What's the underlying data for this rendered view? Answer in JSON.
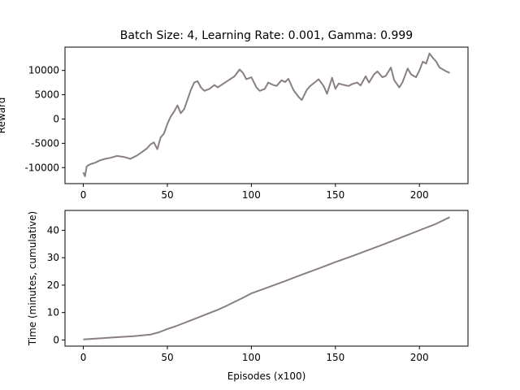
{
  "chart_data": [
    {
      "type": "line",
      "title": "Batch Size: 4, Learning Rate: 0.001, Gamma: 0.999",
      "xlabel": "",
      "ylabel": "Reward",
      "xlim": [
        -10.9,
        228.9
      ],
      "ylim": [
        -13300,
        14800
      ],
      "xticks": [
        0,
        50,
        100,
        150,
        200
      ],
      "yticks": [
        -10000,
        -5000,
        0,
        5000,
        10000
      ],
      "grid": false,
      "color": "#8a7f80",
      "series": [
        {
          "x": [
            0,
            1,
            2,
            3,
            5,
            7,
            10,
            13,
            16,
            20,
            24,
            28,
            32,
            35,
            38,
            40,
            42,
            44,
            46,
            48,
            50,
            52,
            54,
            56,
            58,
            60,
            62,
            64,
            66,
            68,
            70,
            72,
            75,
            78,
            80,
            83,
            86,
            90,
            93,
            95,
            97,
            100,
            103,
            105,
            108,
            110,
            113,
            115,
            118,
            120,
            122,
            125,
            128,
            130,
            133,
            135,
            138,
            140,
            143,
            145,
            148,
            150,
            152,
            155,
            158,
            160,
            163,
            165,
            168,
            170,
            173,
            175,
            178,
            180,
            183,
            185,
            188,
            190,
            193,
            195,
            198,
            200,
            202,
            204,
            206,
            208,
            210,
            212,
            214,
            216,
            218
          ],
          "values": [
            -11000,
            -11800,
            -9800,
            -9500,
            -9200,
            -9000,
            -8500,
            -8200,
            -8000,
            -7600,
            -7800,
            -8200,
            -7500,
            -6800,
            -6000,
            -5200,
            -4800,
            -6200,
            -3800,
            -3000,
            -1000,
            500,
            1500,
            2800,
            1200,
            2000,
            4000,
            6000,
            7500,
            7800,
            6500,
            5800,
            6200,
            7000,
            6500,
            7200,
            7900,
            8800,
            10200,
            9500,
            8200,
            8600,
            6500,
            5800,
            6200,
            7500,
            7000,
            6800,
            8000,
            7600,
            8300,
            6000,
            4600,
            3900,
            6000,
            6800,
            7600,
            8200,
            6800,
            5200,
            8500,
            6200,
            7300,
            7000,
            6800,
            7200,
            7500,
            6900,
            8800,
            7500,
            9200,
            9800,
            8600,
            8900,
            10600,
            8000,
            6500,
            7600,
            10400,
            9200,
            8600,
            10000,
            11800,
            11400,
            13500,
            12600,
            11800,
            10600,
            10200,
            9800,
            9500
          ]
        }
      ]
    },
    {
      "type": "line",
      "title": "",
      "xlabel": "Episodes (x100)",
      "ylabel": "Time (minutes, cumulative)",
      "xlim": [
        -10.9,
        228.9
      ],
      "ylim": [
        -2.25,
        47.25
      ],
      "xticks": [
        0,
        50,
        100,
        150,
        200
      ],
      "yticks": [
        0,
        10,
        20,
        30,
        40
      ],
      "grid": false,
      "color": "#8a7f80",
      "series": [
        {
          "x": [
            0,
            10,
            20,
            30,
            40,
            45,
            50,
            55,
            60,
            65,
            70,
            75,
            80,
            85,
            90,
            95,
            100,
            110,
            120,
            130,
            140,
            150,
            160,
            170,
            180,
            190,
            200,
            210,
            218
          ],
          "values": [
            0.2,
            0.6,
            1.0,
            1.4,
            2.0,
            2.8,
            4.0,
            5.0,
            6.2,
            7.4,
            8.6,
            9.8,
            11.0,
            12.4,
            13.9,
            15.4,
            17.0,
            19.2,
            21.5,
            23.8,
            26.1,
            28.4,
            30.6,
            32.9,
            35.2,
            37.6,
            40.0,
            42.4,
            44.8
          ]
        }
      ]
    }
  ]
}
